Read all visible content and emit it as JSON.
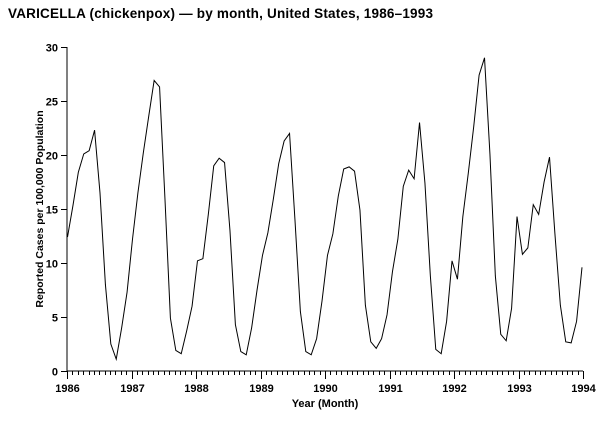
{
  "chart_data": {
    "type": "line",
    "title": "VARICELLA (chickenpox) — by month, United States, 1986–1993",
    "xlabel": "Year (Month)",
    "ylabel": "Reported Cases per 100,000 Population",
    "x_tick_labels": [
      "1986",
      "1987",
      "1988",
      "1989",
      "1990",
      "1991",
      "1992",
      "1993",
      "1994"
    ],
    "y_ticks": [
      0,
      5,
      10,
      15,
      20,
      25,
      30
    ],
    "y_tick_labels": [
      "0",
      "5",
      "10",
      "15",
      "20",
      "25",
      "30"
    ],
    "ylim": [
      0,
      30
    ],
    "xlim_years": [
      1986,
      1994
    ],
    "minor_tick_interval": "month",
    "grid": "off",
    "legend": "none",
    "line_color": "#000000",
    "background_color": "#ffffff",
    "series": [
      {
        "name": "Reported varicella cases per 100,000 population",
        "start": "1986-01",
        "frequency": "monthly",
        "values": [
          12.4,
          15.3,
          18.4,
          20.1,
          20.4,
          22.3,
          16.5,
          8.0,
          2.5,
          1.1,
          4.0,
          7.3,
          12.2,
          16.5,
          20.2,
          23.6,
          26.9,
          26.3,
          15.9,
          4.9,
          1.9,
          1.6,
          3.7,
          6.0,
          10.2,
          10.4,
          14.5,
          19.0,
          19.7,
          19.3,
          13.0,
          4.3,
          1.8,
          1.5,
          4.0,
          7.5,
          10.7,
          12.8,
          15.9,
          19.2,
          21.3,
          22.0,
          14.0,
          5.5,
          1.8,
          1.5,
          3.0,
          6.5,
          10.7,
          12.7,
          16.2,
          18.7,
          18.9,
          18.5,
          14.9,
          6.1,
          2.7,
          2.1,
          3.0,
          5.2,
          9.2,
          12.2,
          17.1,
          18.6,
          17.8,
          23.0,
          17.4,
          8.8,
          2.0,
          1.6,
          4.6,
          10.2,
          8.5,
          14.3,
          18.3,
          22.6,
          27.4,
          29.0,
          20.1,
          8.8,
          3.4,
          2.8,
          5.8,
          14.3,
          10.8,
          11.4,
          15.4,
          14.5,
          17.5,
          19.8,
          12.7,
          6.1,
          2.7,
          2.6,
          4.6,
          9.6
        ]
      }
    ]
  }
}
